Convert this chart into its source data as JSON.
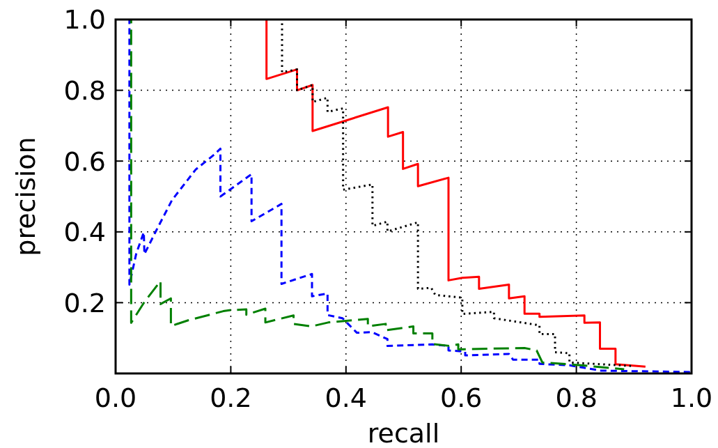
{
  "chart_data": {
    "type": "line",
    "xlabel": "recall",
    "ylabel": "precision",
    "xlim": [
      0,
      1
    ],
    "ylim": [
      0,
      1
    ],
    "xticks": [
      {
        "value": 0,
        "label": "0.0"
      },
      0.2,
      0.4,
      0.6,
      0.8,
      {
        "value": 1,
        "label": "1.0"
      }
    ],
    "yticks": [
      0.2,
      0.4,
      0.6,
      0.8,
      {
        "value": 1,
        "label": "1.0"
      }
    ],
    "grid": true,
    "series": [
      {
        "color": "#ff0000",
        "line_style": "solid",
        "x": [
          0.262,
          0.262,
          0.315,
          0.315,
          0.342,
          0.342,
          0.473,
          0.473,
          0.499,
          0.499,
          0.525,
          0.525,
          0.578,
          0.578,
          0.602,
          0.631,
          0.631,
          0.683,
          0.683,
          0.71,
          0.71,
          0.736,
          0.736,
          0.814,
          0.814,
          0.841,
          0.841,
          0.868,
          0.868,
          0.92
        ],
        "values": [
          1.0,
          0.832,
          0.859,
          0.8,
          0.815,
          0.685,
          0.752,
          0.669,
          0.682,
          0.578,
          0.592,
          0.529,
          0.553,
          0.263,
          0.27,
          0.273,
          0.239,
          0.251,
          0.212,
          0.218,
          0.169,
          0.169,
          0.16,
          0.164,
          0.143,
          0.144,
          0.07,
          0.07,
          0.026,
          0.019
        ]
      },
      {
        "color": "#000000",
        "line_style": "dotted",
        "x": [
          0.289,
          0.289,
          0.315,
          0.315,
          0.342,
          0.342,
          0.368,
          0.368,
          0.395,
          0.395,
          0.446,
          0.446,
          0.472,
          0.472,
          0.525,
          0.525,
          0.548,
          0.555,
          0.602,
          0.602,
          0.657,
          0.657,
          0.736,
          0.736,
          0.763,
          0.763,
          0.788,
          0.788,
          0.898
        ],
        "values": [
          1.0,
          0.851,
          0.859,
          0.8,
          0.815,
          0.767,
          0.779,
          0.739,
          0.749,
          0.519,
          0.534,
          0.417,
          0.429,
          0.401,
          0.427,
          0.239,
          0.242,
          0.222,
          0.214,
          0.168,
          0.174,
          0.156,
          0.136,
          0.111,
          0.111,
          0.06,
          0.057,
          0.031,
          0.021
        ]
      },
      {
        "color": "#0000ff",
        "line_style": "dashed",
        "x": [
          0.024,
          0.024,
          0.036,
          0.044,
          0.049,
          0.05,
          0.07,
          0.098,
          0.139,
          0.171,
          0.182,
          0.182,
          0.236,
          0.236,
          0.288,
          0.288,
          0.341,
          0.341,
          0.368,
          0.368,
          0.394,
          0.419,
          0.445,
          0.472,
          0.472,
          0.55,
          0.578,
          0.578,
          0.607,
          0.607,
          0.683,
          0.69,
          0.736,
          0.736,
          0.788,
          0.843,
          0.998
        ],
        "values": [
          1.0,
          0.251,
          0.34,
          0.376,
          0.399,
          0.337,
          0.402,
          0.49,
          0.576,
          0.618,
          0.635,
          0.5,
          0.563,
          0.43,
          0.479,
          0.253,
          0.281,
          0.218,
          0.226,
          0.165,
          0.156,
          0.115,
          0.117,
          0.097,
          0.078,
          0.082,
          0.078,
          0.065,
          0.062,
          0.051,
          0.055,
          0.039,
          0.039,
          0.027,
          0.023,
          0.008,
          0.004
        ]
      },
      {
        "color": "#008000",
        "line_style": "longdash",
        "x": [
          0.027,
          0.027,
          0.05,
          0.078,
          0.078,
          0.096,
          0.096,
          0.126,
          0.187,
          0.2,
          0.227,
          0.227,
          0.26,
          0.26,
          0.309,
          0.309,
          0.34,
          0.369,
          0.438,
          0.438,
          0.469,
          0.469,
          0.517,
          0.517,
          0.55,
          0.55,
          0.579,
          0.595,
          0.595,
          0.71,
          0.731,
          0.741,
          0.788,
          0.883
        ],
        "values": [
          1.0,
          0.143,
          0.202,
          0.261,
          0.196,
          0.212,
          0.134,
          0.15,
          0.176,
          0.179,
          0.181,
          0.166,
          0.183,
          0.144,
          0.164,
          0.14,
          0.133,
          0.144,
          0.154,
          0.133,
          0.14,
          0.122,
          0.133,
          0.113,
          0.113,
          0.083,
          0.078,
          0.082,
          0.068,
          0.072,
          0.065,
          0.031,
          0.026,
          0.012
        ]
      }
    ]
  }
}
